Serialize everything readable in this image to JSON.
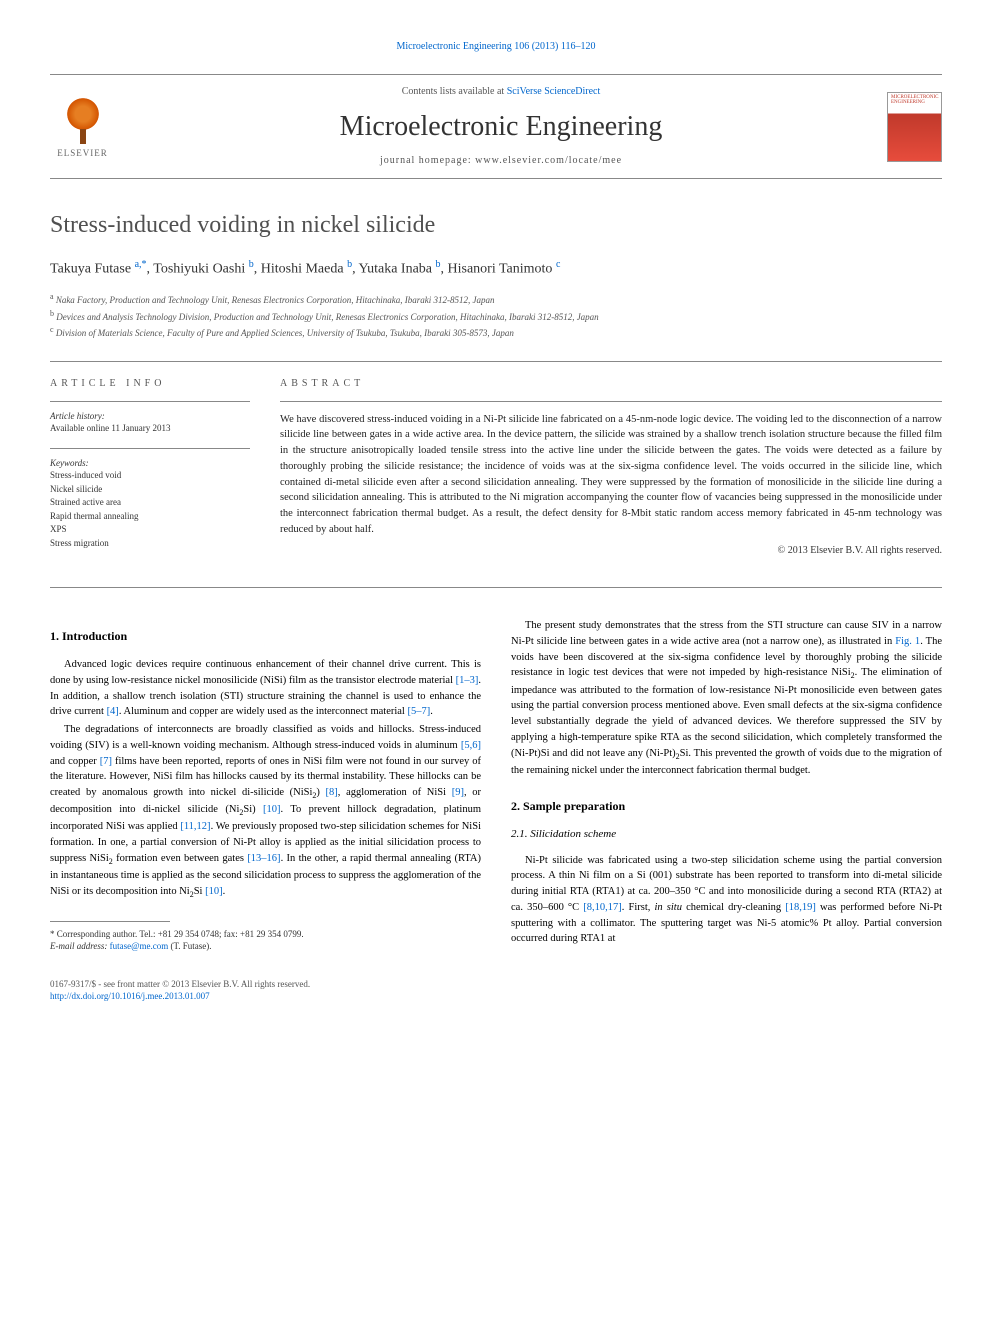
{
  "journal_ref": "Microelectronic Engineering 106 (2013) 116–120",
  "header": {
    "contents_prefix": "Contents lists available at ",
    "contents_link": "SciVerse ScienceDirect",
    "journal_name": "Microelectronic Engineering",
    "homepage_prefix": "journal homepage: ",
    "homepage_url": "www.elsevier.com/locate/mee",
    "publisher": "ELSEVIER",
    "cover_text": "MICROELECTRONIC ENGINEERING"
  },
  "title": "Stress-induced voiding in nickel silicide",
  "authors_html": "Takuya Futase <sup>a,*</sup>, Toshiyuki Oashi <sup>b</sup>, Hitoshi Maeda <sup>b</sup>, Yutaka Inaba <sup>b</sup>, Hisanori Tanimoto <sup>c</sup>",
  "affiliations": [
    {
      "sup": "a",
      "text": "Naka Factory, Production and Technology Unit, Renesas Electronics Corporation, Hitachinaka, Ibaraki 312-8512, Japan"
    },
    {
      "sup": "b",
      "text": "Devices and Analysis Technology Division, Production and Technology Unit, Renesas Electronics Corporation, Hitachinaka, Ibaraki 312-8512, Japan"
    },
    {
      "sup": "c",
      "text": "Division of Materials Science, Faculty of Pure and Applied Sciences, University of Tsukuba, Tsukuba, Ibaraki 305-8573, Japan"
    }
  ],
  "article_info": {
    "heading": "ARTICLE INFO",
    "history_label": "Article history:",
    "history_text": "Available online 11 January 2013",
    "keywords_label": "Keywords:",
    "keywords": [
      "Stress-induced void",
      "Nickel silicide",
      "Strained active area",
      "Rapid thermal annealing",
      "XPS",
      "Stress migration"
    ]
  },
  "abstract": {
    "heading": "ABSTRACT",
    "text": "We have discovered stress-induced voiding in a Ni-Pt silicide line fabricated on a 45-nm-node logic device. The voiding led to the disconnection of a narrow silicide line between gates in a wide active area. In the device pattern, the silicide was strained by a shallow trench isolation structure because the filled film in the structure anisotropically loaded tensile stress into the active line under the silicide between the gates. The voids were detected as a failure by thoroughly probing the silicide resistance; the incidence of voids was at the six-sigma confidence level. The voids occurred in the silicide line, which contained di-metal silicide even after a second silicidation annealing. They were suppressed by the formation of monosilicide in the silicide line during a second silicidation annealing. This is attributed to the Ni migration accompanying the counter flow of vacancies being suppressed in the monosilicide under the interconnect fabrication thermal budget. As a result, the defect density for 8-Mbit static random access memory fabricated in 45-nm technology was reduced by about half.",
    "copyright": "© 2013 Elsevier B.V. All rights reserved."
  },
  "body": {
    "intro_heading": "1. Introduction",
    "intro_p1": "Advanced logic devices require continuous enhancement of their channel drive current. This is done by using low-resistance nickel monosilicide (NiSi) film as the transistor electrode material <span class=\"ref\">[1–3]</span>. In addition, a shallow trench isolation (STI) structure straining the channel is used to enhance the drive current <span class=\"ref\">[4]</span>. Aluminum and copper are widely used as the interconnect material <span class=\"ref\">[5–7]</span>.",
    "intro_p2": "The degradations of interconnects are broadly classified as voids and hillocks. Stress-induced voiding (SIV) is a well-known voiding mechanism. Although stress-induced voids in aluminum <span class=\"ref\">[5,6]</span> and copper <span class=\"ref\">[7]</span> films have been reported, reports of ones in NiSi film were not found in our survey of the literature. However, NiSi film has hillocks caused by its thermal instability. These hillocks can be created by anomalous growth into nickel di-silicide (NiSi<sub>2</sub>) <span class=\"ref\">[8]</span>, agglomeration of NiSi <span class=\"ref\">[9]</span>, or decomposition into di-nickel silicide (Ni<sub>2</sub>Si) <span class=\"ref\">[10]</span>. To prevent hillock degradation, platinum incorporated NiSi was applied <span class=\"ref\">[11,12]</span>. We previously proposed two-step silicidation schemes for NiSi formation. In one, a partial conversion of Ni-Pt alloy is applied as the initial silicidation process to suppress NiSi<sub>2</sub> formation even between gates <span class=\"ref\">[13–16]</span>. In the other, a rapid thermal annealing (RTA) in instantaneous time is applied as the second silicidation process to suppress the agglomeration of the NiSi or its decomposition into Ni<sub>2</sub>Si <span class=\"ref\">[10]</span>.",
    "intro_p3": "The present study demonstrates that the stress from the STI structure can cause SIV in a narrow Ni-Pt silicide line between gates in a wide active area (not a narrow one), as illustrated in <span class=\"ref\">Fig. 1</span>. The voids have been discovered at the six-sigma confidence level by thoroughly probing the silicide resistance in logic test devices that were not impeded by high-resistance NiSi<sub>2</sub>. The elimination of impedance was attributed to the formation of low-resistance Ni-Pt monosilicide even between gates using the partial conversion process mentioned above. Even small defects at the six-sigma confidence level substantially degrade the yield of advanced devices. We therefore suppressed the SIV by applying a high-temperature spike RTA as the second silicidation, which completely transformed the (Ni-Pt)Si and did not leave any (Ni-Pt)<sub>2</sub>Si. This prevented the growth of voids due to the migration of the remaining nickel under the interconnect fabrication thermal budget.",
    "sample_heading": "2. Sample preparation",
    "silicidation_heading": "2.1. Silicidation scheme",
    "silicidation_p1": "Ni-Pt silicide was fabricated using a two-step silicidation scheme using the partial conversion process. A thin Ni film on a Si (001) substrate has been reported to transform into di-metal silicide during initial RTA (RTA1) at ca. 200–350 °C and into monosilicide during a second RTA (RTA2) at ca. 350–600 °C <span class=\"ref\">[8,10,17]</span>. First, <i>in situ</i> chemical dry-cleaning <span class=\"ref\">[18,19]</span> was performed before Ni-Pt sputtering with a collimator. The sputtering target was Ni-5 atomic% Pt alloy. Partial conversion occurred during RTA1 at"
  },
  "footnote": {
    "corr": "* Corresponding author. Tel.: +81 29 354 0748; fax: +81 29 354 0799.",
    "email_label": "E-mail address: ",
    "email": "futase@me.com",
    "email_suffix": " (T. Futase)."
  },
  "footer": {
    "issn": "0167-9317/$ - see front matter © 2013 Elsevier B.V. All rights reserved.",
    "doi": "http://dx.doi.org/10.1016/j.mee.2013.01.007"
  },
  "colors": {
    "link": "#0066cc",
    "text": "#000000",
    "heading_gray": "#505050",
    "border": "#888888",
    "elsevier_orange": "#e67e22"
  },
  "typography": {
    "title_fontsize": 24,
    "journal_name_fontsize": 28,
    "body_fontsize": 10.5,
    "author_fontsize": 14,
    "affiliation_fontsize": 9,
    "footnote_fontsize": 9
  }
}
